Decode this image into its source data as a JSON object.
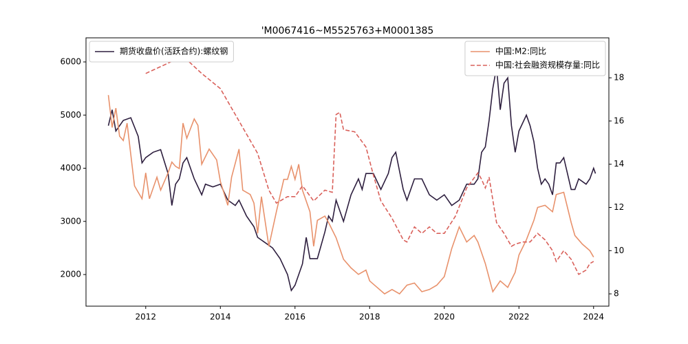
{
  "chart_data": {
    "type": "line",
    "title": "'M0067416~M5525763+M0001385",
    "xlim": [
      2010.4,
      2024.41
    ],
    "xticks": [
      2012,
      2014,
      2016,
      2018,
      2020,
      2022,
      2024
    ],
    "ylim": [
      1405,
      6453
    ],
    "yticks": [
      2000,
      3000,
      4000,
      5000,
      6000
    ],
    "y2lim": [
      7.43,
      19.85
    ],
    "y2ticks": [
      8,
      10,
      12,
      14,
      16,
      18
    ],
    "legend_loc": {
      "y": "upper left",
      "y2": "upper right"
    },
    "series": [
      {
        "name": "期货收盘价(活跃合约):螺纹钢",
        "color": "#2d1e3e",
        "linestyle": "solid",
        "axis": "y",
        "x": [
          2011.0,
          2011.1,
          2011.2,
          2011.4,
          2011.6,
          2011.8,
          2011.9,
          2012.0,
          2012.2,
          2012.4,
          2012.6,
          2012.7,
          2012.8,
          2012.9,
          2013.0,
          2013.1,
          2013.3,
          2013.5,
          2013.6,
          2013.8,
          2014.0,
          2014.2,
          2014.4,
          2014.5,
          2014.7,
          2014.9,
          2015.0,
          2015.2,
          2015.4,
          2015.6,
          2015.8,
          2015.9,
          2016.0,
          2016.2,
          2016.3,
          2016.4,
          2016.6,
          2016.8,
          2016.9,
          2017.0,
          2017.1,
          2017.3,
          2017.5,
          2017.7,
          2017.8,
          2017.9,
          2018.1,
          2018.3,
          2018.5,
          2018.6,
          2018.7,
          2018.9,
          2019.0,
          2019.2,
          2019.4,
          2019.6,
          2019.8,
          2020.0,
          2020.2,
          2020.4,
          2020.6,
          2020.8,
          2020.9,
          2021.0,
          2021.1,
          2021.2,
          2021.3,
          2021.4,
          2021.5,
          2021.6,
          2021.7,
          2021.8,
          2021.9,
          2022.0,
          2022.2,
          2022.3,
          2022.4,
          2022.5,
          2022.6,
          2022.7,
          2022.8,
          2022.9,
          2023.0,
          2023.1,
          2023.2,
          2023.4,
          2023.5,
          2023.6,
          2023.8,
          2023.9,
          2024.0,
          2024.05
        ],
        "values": [
          4800,
          5100,
          4700,
          4900,
          4950,
          4600,
          4100,
          4200,
          4300,
          4350,
          3900,
          3300,
          3700,
          3800,
          4100,
          4200,
          3800,
          3500,
          3700,
          3650,
          3700,
          3400,
          3300,
          3400,
          3100,
          2900,
          2700,
          2600,
          2500,
          2300,
          2000,
          1700,
          1800,
          2200,
          2700,
          2300,
          2300,
          2800,
          3100,
          3000,
          3400,
          3000,
          3500,
          3800,
          3600,
          3900,
          3900,
          3600,
          3900,
          4200,
          4300,
          3600,
          3400,
          3800,
          3800,
          3500,
          3400,
          3500,
          3300,
          3400,
          3700,
          3700,
          3800,
          4300,
          4400,
          4900,
          5500,
          5900,
          5100,
          5600,
          5700,
          4800,
          4300,
          4700,
          5000,
          4800,
          4500,
          4000,
          3700,
          3800,
          3700,
          3500,
          4100,
          4100,
          4200,
          3600,
          3600,
          3800,
          3700,
          3800,
          4000,
          3900
        ]
      },
      {
        "name": "中国:M2:同比",
        "color": "#e8916b",
        "linestyle": "solid",
        "axis": "y2",
        "x": [
          2011.0,
          2011.1,
          2011.2,
          2011.3,
          2011.4,
          2011.5,
          2011.7,
          2011.8,
          2011.9,
          2012.0,
          2012.1,
          2012.3,
          2012.4,
          2012.6,
          2012.7,
          2012.8,
          2012.9,
          2013.0,
          2013.1,
          2013.3,
          2013.4,
          2013.5,
          2013.7,
          2013.9,
          2014.0,
          2014.2,
          2014.3,
          2014.5,
          2014.6,
          2014.8,
          2014.9,
          2015.0,
          2015.1,
          2015.3,
          2015.5,
          2015.7,
          2015.8,
          2015.9,
          2016.0,
          2016.1,
          2016.2,
          2016.4,
          2016.5,
          2016.6,
          2016.8,
          2016.9,
          2017.1,
          2017.3,
          2017.5,
          2017.7,
          2017.9,
          2018.0,
          2018.2,
          2018.4,
          2018.6,
          2018.8,
          2019.0,
          2019.2,
          2019.4,
          2019.6,
          2019.8,
          2020.0,
          2020.2,
          2020.4,
          2020.6,
          2020.8,
          2020.9,
          2021.1,
          2021.3,
          2021.5,
          2021.7,
          2021.9,
          2022.0,
          2022.2,
          2022.4,
          2022.5,
          2022.7,
          2022.9,
          2023.0,
          2023.2,
          2023.4,
          2023.5,
          2023.7,
          2023.9,
          2024.0
        ],
        "values": [
          17.2,
          15.7,
          16.6,
          15.3,
          15.1,
          15.9,
          13.0,
          12.7,
          12.4,
          13.6,
          12.4,
          13.4,
          12.8,
          13.6,
          14.1,
          13.9,
          13.8,
          15.9,
          15.2,
          16.1,
          15.8,
          14.0,
          14.7,
          14.2,
          13.2,
          12.1,
          13.4,
          14.7,
          12.8,
          12.6,
          12.2,
          10.8,
          12.5,
          10.2,
          11.8,
          13.3,
          13.3,
          13.9,
          13.3,
          14.0,
          12.8,
          11.8,
          10.2,
          11.4,
          11.6,
          11.3,
          10.6,
          9.6,
          9.2,
          8.9,
          9.1,
          8.6,
          8.3,
          8.0,
          8.2,
          8.0,
          8.4,
          8.5,
          8.1,
          8.2,
          8.4,
          8.8,
          10.1,
          11.1,
          10.4,
          10.7,
          10.4,
          9.4,
          8.1,
          8.6,
          8.3,
          9.0,
          9.8,
          10.5,
          11.4,
          12.0,
          12.1,
          11.8,
          12.6,
          12.7,
          11.3,
          10.7,
          10.3,
          10.0,
          9.7
        ]
      },
      {
        "name": "中国:社会融资规模存量:同比",
        "color": "#d9605a",
        "linestyle": "dashed",
        "axis": "y2",
        "x": [
          2012.0,
          2012.5,
          2013.0,
          2013.5,
          2014.0,
          2014.5,
          2015.0,
          2015.3,
          2015.5,
          2015.8,
          2016.0,
          2016.2,
          2016.5,
          2016.8,
          2017.0,
          2017.1,
          2017.2,
          2017.3,
          2017.6,
          2017.9,
          2018.1,
          2018.3,
          2018.6,
          2018.9,
          2019.0,
          2019.2,
          2019.4,
          2019.6,
          2019.8,
          2020.0,
          2020.3,
          2020.6,
          2020.9,
          2021.0,
          2021.1,
          2021.2,
          2021.4,
          2021.6,
          2021.8,
          2021.9,
          2022.1,
          2022.3,
          2022.5,
          2022.7,
          2022.9,
          2023.0,
          2023.2,
          2023.4,
          2023.6,
          2023.8,
          2023.9,
          2024.0
        ],
        "values": [
          18.2,
          18.6,
          19.0,
          18.2,
          17.5,
          16.0,
          14.5,
          12.8,
          12.2,
          12.5,
          12.5,
          13.0,
          12.3,
          12.8,
          12.7,
          16.3,
          16.4,
          15.6,
          15.5,
          14.8,
          13.5,
          12.3,
          11.5,
          10.5,
          10.4,
          11.1,
          10.8,
          11.1,
          10.8,
          10.8,
          11.6,
          12.9,
          13.6,
          13.3,
          12.9,
          13.4,
          11.3,
          10.8,
          10.2,
          10.3,
          10.4,
          10.4,
          10.8,
          10.5,
          10.0,
          9.5,
          10.0,
          9.6,
          8.9,
          9.1,
          9.4,
          9.5
        ]
      }
    ]
  }
}
